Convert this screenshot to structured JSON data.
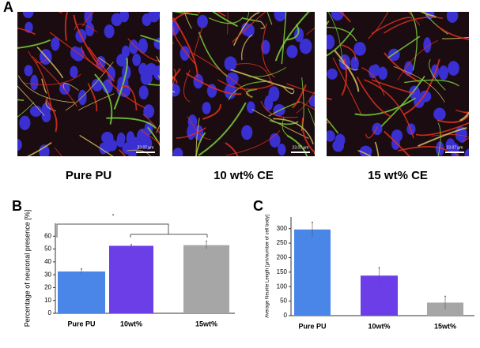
{
  "panel_a": {
    "label": "A",
    "images": [
      {
        "caption": "Pure PU",
        "scale": "23.07 µm"
      },
      {
        "caption": "10 wt% CE",
        "scale": "23.07 µm"
      },
      {
        "caption": "15 wt% CE",
        "scale": "23.07 µm"
      }
    ]
  },
  "chart_data": [
    {
      "type": "bar",
      "label": "B",
      "y_label": "Percentage of neuronal presence [%]",
      "categories": [
        "Pure PU",
        "10wt%",
        "15wt%"
      ],
      "values": [
        32.5,
        52.5,
        53
      ],
      "errors": [
        2,
        1,
        3
      ],
      "colors": [
        "#4a86e8",
        "#6b3ee8",
        "#a6a6a6"
      ],
      "ylim": [
        0,
        70
      ],
      "yticks": [
        0,
        10,
        20,
        30,
        40,
        50,
        60
      ],
      "annotation": "*"
    },
    {
      "type": "bar",
      "label": "C",
      "y_label": "Average Neurite Length [µm/number of cell body]",
      "categories": [
        "Pure PU",
        "10wt%",
        "15wt%"
      ],
      "values": [
        297,
        138,
        45
      ],
      "errors": [
        25,
        27,
        22
      ],
      "colors": [
        "#4a86e8",
        "#6b3ee8",
        "#a6a6a6"
      ],
      "ylim": [
        0,
        340
      ],
      "yticks": [
        0,
        50,
        100,
        150,
        200,
        250,
        300
      ]
    }
  ]
}
